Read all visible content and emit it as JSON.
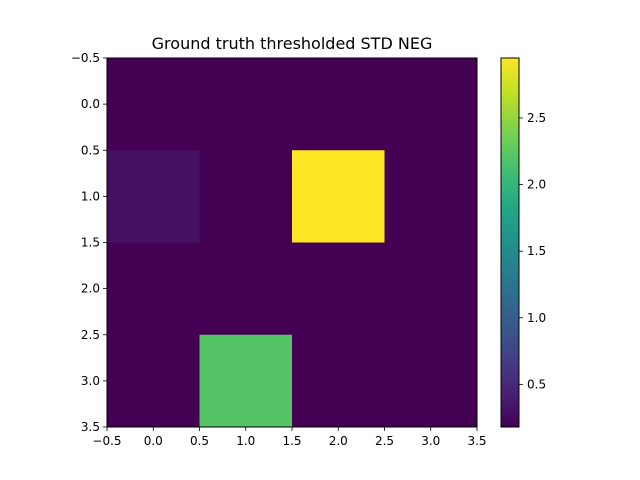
{
  "chart_data": {
    "type": "heatmap",
    "title": "Ground truth thresholded STD NEG",
    "xlabel": "",
    "ylabel": "",
    "xlim": [
      -0.5,
      3.5
    ],
    "ylim": [
      3.5,
      -0.5
    ],
    "x_ticks": [
      -0.5,
      0.0,
      0.5,
      1.0,
      1.5,
      2.0,
      2.5,
      3.0,
      3.5
    ],
    "y_ticks": [
      -0.5,
      0.0,
      0.5,
      1.0,
      1.5,
      2.0,
      2.5,
      3.0,
      3.5
    ],
    "values": [
      [
        0.18,
        0.18,
        0.18,
        0.18
      ],
      [
        0.3,
        0.18,
        2.95,
        0.18
      ],
      [
        0.18,
        0.18,
        0.18,
        0.18
      ],
      [
        0.18,
        2.2,
        0.18,
        0.18
      ]
    ],
    "colormap": "viridis",
    "vmin": 0.18,
    "vmax": 2.95,
    "colorbar_ticks": [
      0.5,
      1.0,
      1.5,
      2.0,
      2.5
    ]
  }
}
